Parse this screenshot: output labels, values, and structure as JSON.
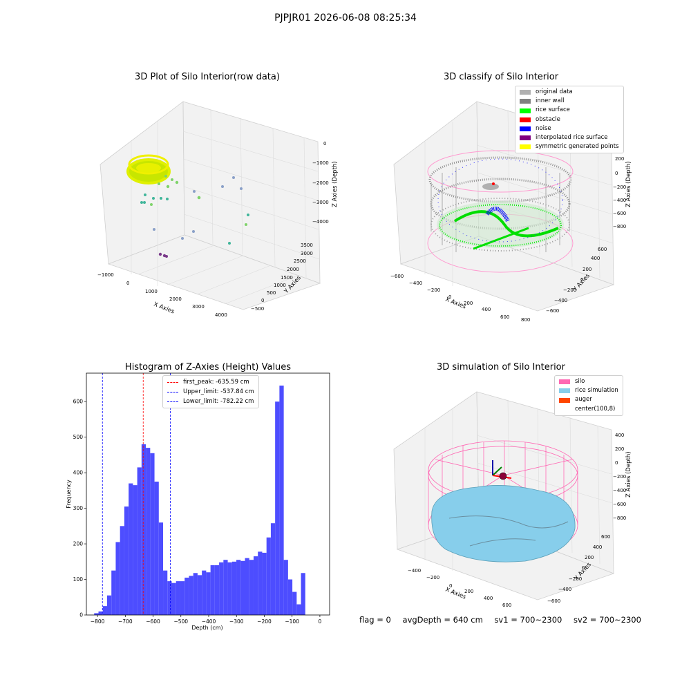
{
  "suptitle": "PJPJR01 2026-06-08 08:25:34",
  "panels": {
    "raw": {
      "title": "3D Plot of Silo Interior(row data)",
      "xlabel": "X Axies",
      "ylabel": "Y Axies",
      "zlabel": "Z Axies (Depth)",
      "xticks": [
        "−1000",
        "0",
        "1000",
        "2000",
        "3000",
        "4000"
      ],
      "yticks": [
        "−500",
        "0",
        "500",
        "1000",
        "1500",
        "2000",
        "2500",
        "3000",
        "3500"
      ],
      "zticks": [
        "0",
        "−1000",
        "−2000",
        "−3000",
        "−4000"
      ]
    },
    "classify": {
      "title": "3D classify of Silo Interior",
      "xlabel": "X Axies",
      "ylabel": "Y Axies",
      "zlabel": "Z Axies (Depth)",
      "xticks": [
        "−600",
        "−400",
        "−200",
        "0",
        "200",
        "400",
        "600",
        "800"
      ],
      "yticks": [
        "−600",
        "−400",
        "−200",
        "0",
        "200",
        "400",
        "600"
      ],
      "zticks": [
        "200",
        "0",
        "−200",
        "−400",
        "−600",
        "−800"
      ],
      "legend": [
        {
          "label": "original data",
          "color": "#b0b0b0"
        },
        {
          "label": "inner wall",
          "color": "#808080"
        },
        {
          "label": "rice surface",
          "color": "#00ff00"
        },
        {
          "label": "obstacle",
          "color": "#ff0000"
        },
        {
          "label": "noise",
          "color": "#0000ff"
        },
        {
          "label": "interpolated rice surface",
          "color": "#800080"
        },
        {
          "label": "symmetric generated points",
          "color": "#ffff00"
        }
      ]
    },
    "simulation": {
      "title": "3D simulation of Silo Interior",
      "xlabel": "X Axies",
      "ylabel": "Y Axies",
      "zlabel": "Z Axies (Depth)",
      "xticks": [
        "−400",
        "−200",
        "0",
        "200",
        "400",
        "600"
      ],
      "yticks": [
        "−600",
        "−400",
        "−200",
        "0",
        "200",
        "400",
        "600"
      ],
      "zticks": [
        "400",
        "200",
        "0",
        "−200",
        "−400",
        "−600",
        "−800"
      ],
      "legend": [
        {
          "label": "silo",
          "color": "#ff69b4"
        },
        {
          "label": "rice simulation",
          "color": "#87ceeb"
        },
        {
          "label": "auger",
          "color": "#ff4500"
        },
        {
          "label": "center(100,8)",
          "color": "#ffffff"
        }
      ]
    }
  },
  "footer": {
    "flag": "flag = 0",
    "avg": "avgDepth = 640 cm",
    "sv1": "sv1 = 700~2300",
    "sv2": "sv2 = 700~2300"
  },
  "chart_data": [
    {
      "type": "bar",
      "title": "Histogram of Z-Axies (Height) Values",
      "xlabel": "Depth (cm)",
      "ylabel": "Frequency",
      "bin_start": -812,
      "bin_width": 15.5,
      "values": [
        5,
        10,
        25,
        55,
        125,
        205,
        250,
        305,
        370,
        365,
        415,
        480,
        470,
        455,
        375,
        260,
        125,
        95,
        90,
        95,
        95,
        105,
        110,
        118,
        112,
        125,
        120,
        140,
        140,
        148,
        155,
        148,
        150,
        155,
        152,
        160,
        155,
        165,
        178,
        175,
        218,
        258,
        600,
        645,
        155,
        100,
        65,
        30,
        118
      ],
      "xlim": [
        -840,
        35
      ],
      "ylim": [
        0,
        680
      ],
      "xticks": [
        -800,
        -700,
        -600,
        -500,
        -400,
        -300,
        -200,
        -100,
        0
      ],
      "yticks": [
        0,
        100,
        200,
        300,
        400,
        500,
        600
      ],
      "bar_color": "#4d4dff",
      "grid": false,
      "legend_position": "top-center",
      "vlines": [
        {
          "label": "first_peak: -635.59 cm",
          "x": -635.59,
          "color": "#ff0000"
        },
        {
          "label": "Upper_limit: -537.84 cm",
          "x": -537.84,
          "color": "#0000ff"
        },
        {
          "label": "Lower_limit: -782.22 cm",
          "x": -782.22,
          "color": "#0000ff"
        }
      ]
    }
  ]
}
